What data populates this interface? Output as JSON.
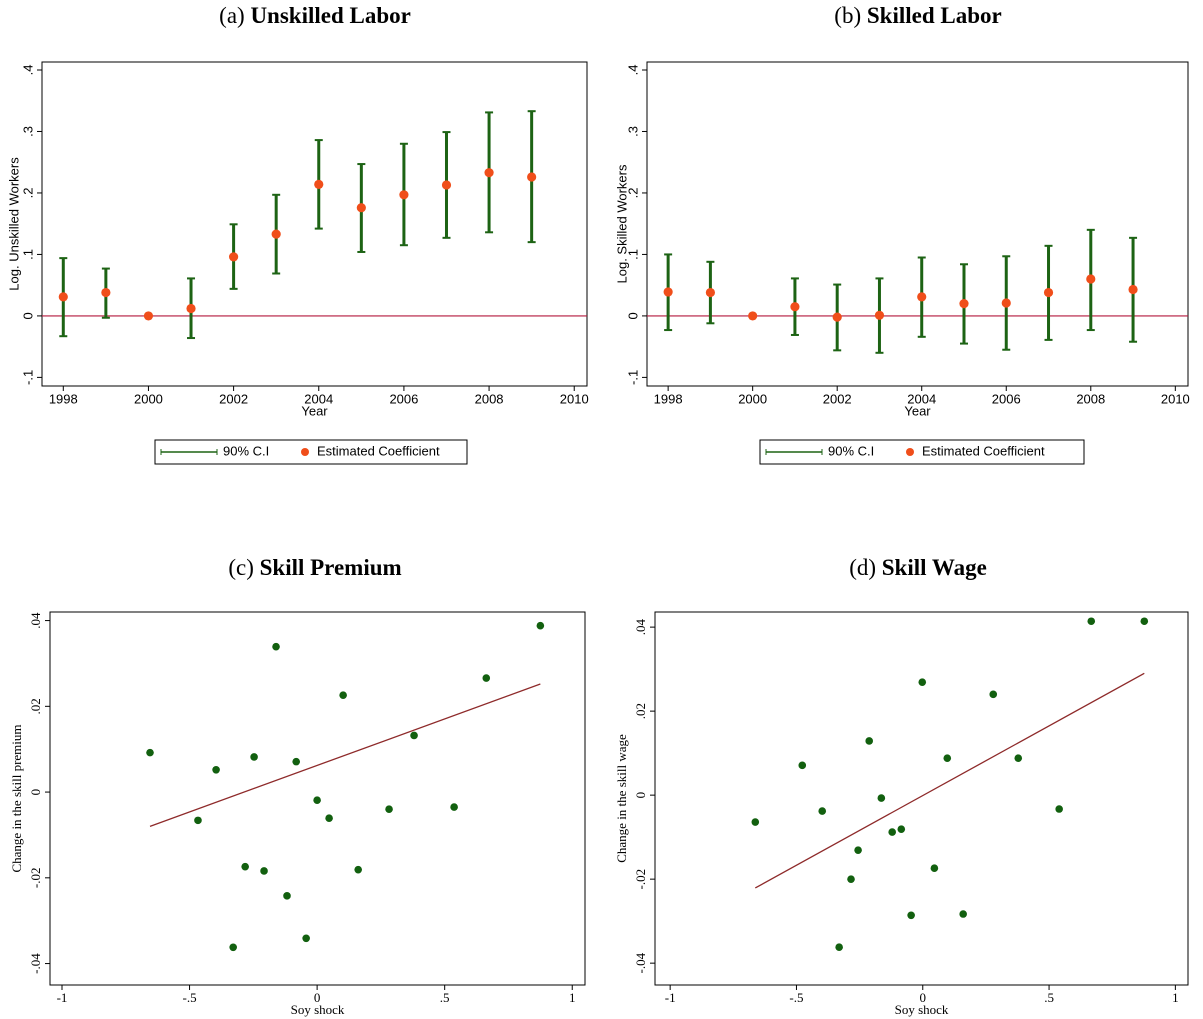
{
  "chart_data": [
    {
      "type": "errorbar",
      "panel": "(a)",
      "title": "Unskilled Labor",
      "xlabel": "Year",
      "ylabel": "Log. Unskilled Workers",
      "x": [
        1998,
        1999,
        2000,
        2001,
        2002,
        2003,
        2004,
        2005,
        2006,
        2007,
        2008,
        2009
      ],
      "series": [
        {
          "name": "90% C.I",
          "color": "#1d6314",
          "lower": [
            -0.033,
            -0.003,
            null,
            -0.036,
            0.044,
            0.069,
            0.142,
            0.104,
            0.115,
            0.127,
            0.136,
            0.12
          ],
          "upper": [
            0.094,
            0.077,
            null,
            0.061,
            0.149,
            0.197,
            0.286,
            0.247,
            0.28,
            0.299,
            0.331,
            0.333
          ]
        },
        {
          "name": "Estimated Coefficient",
          "color": "#f04e1a",
          "values": [
            0.031,
            0.038,
            0,
            0.012,
            0.096,
            0.133,
            0.214,
            0.176,
            0.197,
            0.213,
            0.233,
            0.226
          ]
        }
      ],
      "hline": 0,
      "hline_color": "#b3183c",
      "xlim": [
        1997.5,
        2010.3
      ],
      "xticks": [
        1998,
        2000,
        2002,
        2004,
        2006,
        2008,
        2010
      ],
      "ylim": [
        -0.114,
        0.413
      ],
      "yticks": [
        {
          "value": -0.1,
          "label": "-.1"
        },
        0,
        {
          "value": 0.1,
          "label": ".1"
        },
        {
          "value": 0.2,
          "label": ".2"
        },
        {
          "value": 0.3,
          "label": ".3"
        },
        {
          "value": 0.4,
          "label": ".4"
        }
      ]
    },
    {
      "type": "errorbar",
      "panel": "(b)",
      "title": "Skilled Labor",
      "xlabel": "Year",
      "ylabel": "Log. Skilled Workers",
      "x": [
        1998,
        1999,
        2000,
        2001,
        2002,
        2003,
        2004,
        2005,
        2006,
        2007,
        2008,
        2009
      ],
      "series": [
        {
          "name": "90% C.I",
          "color": "#1d6314",
          "lower": [
            -0.023,
            -0.012,
            null,
            -0.031,
            -0.056,
            -0.06,
            -0.034,
            -0.045,
            -0.055,
            -0.039,
            -0.023,
            -0.042
          ],
          "upper": [
            0.1,
            0.088,
            null,
            0.061,
            0.051,
            0.061,
            0.095,
            0.084,
            0.097,
            0.114,
            0.14,
            0.127
          ]
        },
        {
          "name": "Estimated Coefficient",
          "color": "#f04e1a",
          "values": [
            0.039,
            0.038,
            0,
            0.015,
            -0.002,
            0.001,
            0.031,
            0.02,
            0.021,
            0.038,
            0.06,
            0.043
          ]
        }
      ],
      "hline": 0,
      "hline_color": "#b3183c",
      "xlim": [
        1997.5,
        2010.3
      ],
      "xticks": [
        1998,
        2000,
        2002,
        2004,
        2006,
        2008,
        2010
      ],
      "ylim": [
        -0.114,
        0.413
      ],
      "yticks": [
        {
          "value": -0.1,
          "label": "-.1"
        },
        0,
        {
          "value": 0.1,
          "label": ".1"
        },
        {
          "value": 0.2,
          "label": ".2"
        },
        {
          "value": 0.3,
          "label": ".3"
        },
        {
          "value": 0.4,
          "label": ".4"
        }
      ]
    },
    {
      "type": "scatter",
      "panel": "(c)",
      "title": "Skill Premium",
      "xlabel": "Soy shock",
      "ylabel": "Change in the skill premium",
      "x": [
        -0.655,
        -0.467,
        -0.396,
        -0.329,
        -0.282,
        -0.247,
        -0.208,
        -0.161,
        -0.118,
        -0.082,
        -0.043,
        0,
        0.047,
        0.102,
        0.161,
        0.282,
        0.38,
        0.537,
        0.663,
        0.875
      ],
      "y": [
        0.0092,
        -0.0066,
        0.0052,
        -0.0362,
        -0.0174,
        0.0082,
        -0.0184,
        0.0339,
        -0.0242,
        0.0071,
        -0.0341,
        -0.0019,
        -0.0061,
        0.0226,
        -0.0181,
        -0.004,
        0.0132,
        -0.0035,
        0.0266,
        0.0388
      ],
      "color": "#12600f",
      "fit": {
        "x": [
          -0.655,
          0.875
        ],
        "y": [
          -0.008,
          0.0252
        ],
        "color": "#8e2a2a"
      },
      "xlim": [
        -1.047,
        1.05
      ],
      "xticks": [
        -1,
        {
          "value": -0.5,
          "label": "-.5"
        },
        0,
        {
          "value": 0.5,
          "label": ".5"
        },
        1
      ],
      "ylim": [
        -0.045,
        0.042
      ],
      "yticks": [
        {
          "value": -0.04,
          "label": "-.04"
        },
        {
          "value": -0.02,
          "label": "-.02"
        },
        0,
        {
          "value": 0.02,
          "label": ".02"
        },
        {
          "value": 0.04,
          "label": ".04"
        }
      ]
    },
    {
      "type": "scatter",
      "panel": "(d)",
      "title": "Skill Wage",
      "xlabel": "Soy shock",
      "ylabel": "Change in the skill wage",
      "x": [
        -0.663,
        -0.477,
        -0.398,
        -0.331,
        -0.284,
        -0.256,
        -0.212,
        -0.164,
        -0.121,
        -0.085,
        -0.046,
        -0.002,
        0.046,
        0.097,
        0.16,
        0.279,
        0.378,
        0.54,
        0.667,
        0.877
      ],
      "y": [
        -0.0064,
        0.0071,
        -0.0038,
        -0.0362,
        -0.02,
        -0.0131,
        0.0129,
        -0.0007,
        -0.0088,
        -0.0081,
        -0.0286,
        0.0269,
        -0.0174,
        0.0088,
        -0.0283,
        0.024,
        0.0088,
        -0.0033,
        0.0414,
        0.0414
      ],
      "color": "#12600f",
      "fit": {
        "x": [
          -0.663,
          0.877
        ],
        "y": [
          -0.0221,
          0.029
        ],
        "color": "#8e2a2a"
      },
      "xlim": [
        -1.06,
        1.05
      ],
      "xticks": [
        -1,
        {
          "value": -0.5,
          "label": "-.5"
        },
        0,
        {
          "value": 0.5,
          "label": ".5"
        },
        1
      ],
      "ylim": [
        -0.0452,
        0.0436
      ],
      "yticks": [
        {
          "value": -0.04,
          "label": "-.04"
        },
        {
          "value": -0.02,
          "label": "-.02"
        },
        0,
        {
          "value": 0.02,
          "label": ".02"
        },
        {
          "value": 0.04,
          "label": ".04"
        }
      ]
    }
  ]
}
